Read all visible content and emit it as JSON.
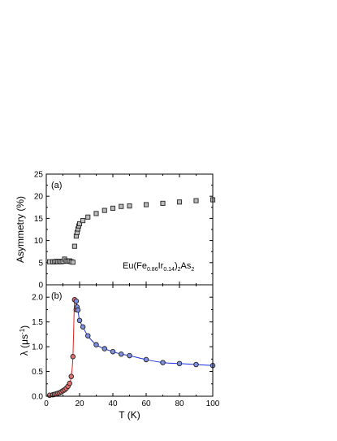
{
  "chart_data": [
    {
      "type": "scatter",
      "panel_label": "(a)",
      "annotation": {
        "parts": [
          {
            "text": "Eu(Fe",
            "sub": false
          },
          {
            "text": "0.86",
            "sub": true
          },
          {
            "text": "Ir",
            "sub": false
          },
          {
            "text": "0.14",
            "sub": true
          },
          {
            "text": ")",
            "sub": false
          },
          {
            "text": "2",
            "sub": true
          },
          {
            "text": "As",
            "sub": false
          },
          {
            "text": "2",
            "sub": true
          }
        ]
      },
      "ylabel": "Asymmetry (%)",
      "xlim": [
        0,
        100
      ],
      "ylim": [
        0,
        25
      ],
      "yticks": [
        "0",
        "5",
        "10",
        "15",
        "20",
        "25"
      ],
      "marker": "square",
      "marker_fill": "#bbbbbb",
      "series": [
        {
          "x": [
            2,
            4,
            5,
            6,
            7,
            8,
            9,
            10,
            11,
            12,
            13,
            14,
            15,
            16,
            17,
            18,
            18.5,
            19,
            19.5,
            20,
            22,
            25,
            30,
            35,
            40,
            45,
            50,
            60,
            70,
            80,
            90,
            100
          ],
          "y": [
            5.2,
            5.2,
            5.2,
            5.3,
            5.2,
            5.3,
            5.2,
            5.3,
            5.8,
            5.4,
            5.3,
            5.4,
            5.2,
            5.1,
            8.7,
            11.0,
            11.8,
            12.6,
            13.3,
            13.8,
            14.5,
            15.3,
            16.1,
            16.8,
            17.3,
            17.7,
            17.8,
            18.1,
            18.4,
            18.7,
            19.0,
            19.2
          ]
        }
      ]
    },
    {
      "type": "scatter",
      "panel_label": "(b)",
      "ylabel_main": "λ (μs",
      "ylabel_sup": "-1",
      "ylabel_close": ")",
      "xlabel": "T (K)",
      "xlim": [
        0,
        100
      ],
      "ylim": [
        0,
        2.25
      ],
      "xticks": [
        "0",
        "20",
        "40",
        "60",
        "80",
        "100"
      ],
      "yticks": [
        "0.0",
        "0.5",
        "1.0",
        "1.5",
        "2.0"
      ],
      "series": [
        {
          "fill": "#e07070",
          "fit_color": "#e02020",
          "x": [
            2,
            4,
            5,
            6,
            7,
            8,
            9,
            10,
            11,
            12,
            13,
            14,
            15,
            16,
            17,
            18
          ],
          "y": [
            0.02,
            0.03,
            0.04,
            0.05,
            0.06,
            0.07,
            0.09,
            0.11,
            0.13,
            0.16,
            0.2,
            0.26,
            0.4,
            0.8,
            1.95,
            1.75
          ]
        },
        {
          "fill": "#8090e0",
          "fit_color": "#1a2ee0",
          "x": [
            18,
            18.5,
            19,
            20,
            22,
            25,
            30,
            35,
            40,
            45,
            50,
            60,
            70,
            80,
            90,
            100
          ],
          "y": [
            1.92,
            1.8,
            1.74,
            1.53,
            1.4,
            1.22,
            1.04,
            0.96,
            0.9,
            0.85,
            0.82,
            0.74,
            0.68,
            0.66,
            0.64,
            0.62
          ]
        }
      ]
    }
  ]
}
